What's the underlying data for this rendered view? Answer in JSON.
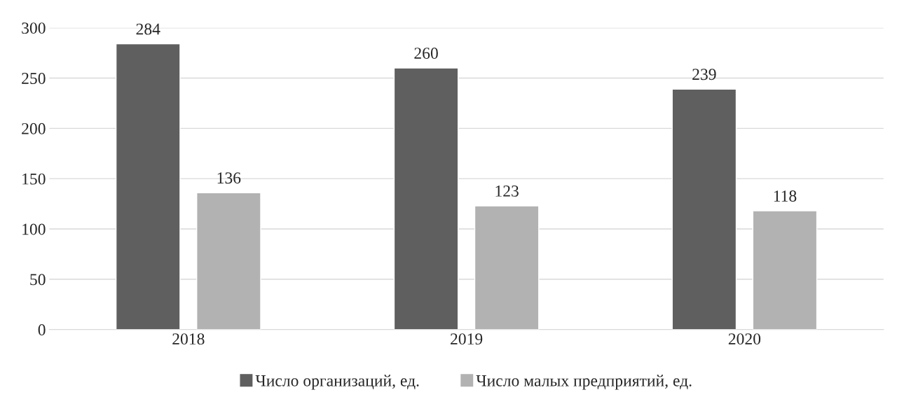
{
  "chart_data": {
    "type": "bar",
    "categories": [
      "2018",
      "2019",
      "2020"
    ],
    "series": [
      {
        "name": "Число организаций, ед.",
        "color": "#5f5f5f",
        "values": [
          284,
          260,
          239
        ]
      },
      {
        "name": "Число малых предприятий, ед.",
        "color": "#b2b2b2",
        "values": [
          136,
          123,
          118
        ]
      }
    ],
    "ylim": [
      0,
      300
    ],
    "yticks": [
      0,
      50,
      100,
      150,
      200,
      250,
      300
    ],
    "grid": "y",
    "legend": "bottom",
    "data_labels": true
  }
}
